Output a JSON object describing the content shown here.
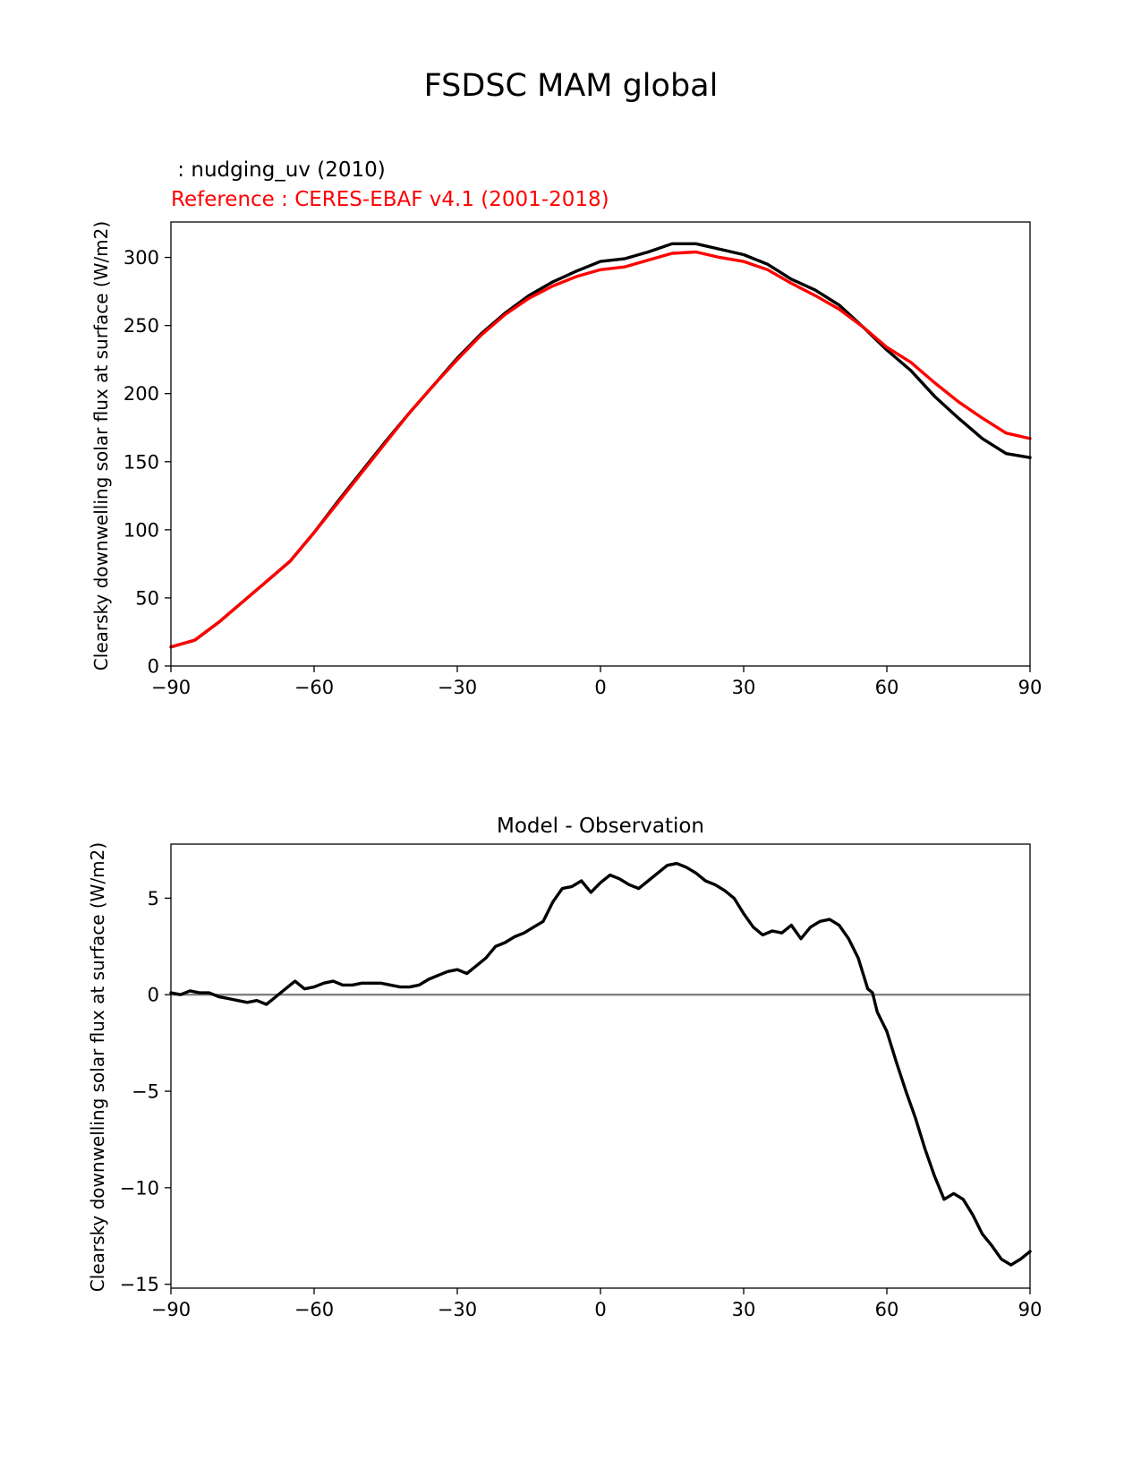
{
  "figure": {
    "title": "FSDSC MAM global"
  },
  "chart_data": [
    {
      "type": "line",
      "legend_labels": {
        "test": " : nudging_uv (2010)",
        "reference": "Reference : CERES-EBAF v4.1 (2001-2018)"
      },
      "xlabel": "",
      "ylabel": "Clearsky downwelling solar flux at surface (W/m2)",
      "xlim": [
        -90,
        90
      ],
      "ylim": [
        0,
        326
      ],
      "xticks": [
        -90,
        -60,
        -30,
        0,
        30,
        60,
        90
      ],
      "xtick_labels": [
        "−90",
        "−60",
        "−30",
        "0",
        "30",
        "60",
        "90"
      ],
      "yticks": [
        0,
        50,
        100,
        150,
        200,
        250,
        300
      ],
      "ytick_labels": [
        "0",
        "50",
        "100",
        "150",
        "200",
        "250",
        "300"
      ],
      "colors": {
        "test": "#000000",
        "reference": "#ff0000"
      },
      "series": [
        {
          "key": "test",
          "x": [
            -90,
            -85,
            -80,
            -75,
            -70,
            -65,
            -60,
            -55,
            -50,
            -45,
            -40,
            -35,
            -30,
            -25,
            -20,
            -15,
            -10,
            -5,
            0,
            5,
            10,
            15,
            20,
            25,
            30,
            35,
            40,
            45,
            50,
            55,
            60,
            65,
            70,
            75,
            80,
            85,
            90
          ],
          "values": [
            14,
            19,
            32,
            47,
            62,
            77,
            98,
            121,
            143,
            165,
            186,
            206,
            226,
            244,
            259,
            272,
            282,
            290,
            297,
            299,
            304,
            310,
            310,
            306,
            302,
            295,
            284,
            276,
            265,
            249,
            232,
            217,
            198,
            182,
            167,
            156,
            153
          ]
        },
        {
          "key": "reference",
          "x": [
            -90,
            -85,
            -80,
            -75,
            -70,
            -65,
            -60,
            -55,
            -50,
            -45,
            -40,
            -35,
            -30,
            -25,
            -20,
            -15,
            -10,
            -5,
            0,
            5,
            10,
            15,
            20,
            25,
            30,
            35,
            40,
            45,
            50,
            55,
            60,
            65,
            70,
            75,
            80,
            85,
            90
          ],
          "values": [
            14,
            19,
            32,
            47,
            62,
            77,
            98,
            120,
            142,
            164,
            186,
            206,
            225,
            243,
            258,
            270,
            279,
            286,
            291,
            293,
            298,
            303,
            304,
            300,
            297,
            291,
            281,
            272,
            262,
            249,
            234,
            223,
            208,
            194,
            182,
            171,
            167
          ]
        }
      ]
    },
    {
      "type": "line",
      "title": "Model - Observation",
      "xlabel": "",
      "ylabel": "Clearsky downwelling solar flux at surface (W/m2)",
      "xlim": [
        -90,
        90
      ],
      "ylim": [
        -15.2,
        7.8
      ],
      "xticks": [
        -90,
        -60,
        -30,
        0,
        30,
        60,
        90
      ],
      "xtick_labels": [
        "−90",
        "−60",
        "−30",
        "0",
        "30",
        "60",
        "90"
      ],
      "yticks": [
        5,
        0,
        -5,
        -10,
        -15
      ],
      "ytick_labels": [
        "5",
        "0",
        "−5",
        "−10",
        "−15"
      ],
      "zero_line": {
        "y": 0,
        "color": "#808080"
      },
      "colors": {
        "diff": "#000000"
      },
      "series": [
        {
          "key": "diff",
          "x": [
            -90,
            -88,
            -86,
            -84,
            -82,
            -80,
            -78,
            -76,
            -74,
            -72,
            -70,
            -68,
            -66,
            -64,
            -62,
            -60,
            -58,
            -56,
            -54,
            -52,
            -50,
            -48,
            -46,
            -44,
            -42,
            -40,
            -38,
            -36,
            -34,
            -32,
            -30,
            -28,
            -26,
            -24,
            -22,
            -20,
            -18,
            -16,
            -14,
            -12,
            -10,
            -8,
            -6,
            -4,
            -2,
            0,
            2,
            4,
            6,
            8,
            10,
            12,
            14,
            16,
            18,
            20,
            22,
            24,
            26,
            28,
            30,
            32,
            34,
            36,
            38,
            40,
            42,
            44,
            46,
            48,
            50,
            52,
            54,
            56,
            57,
            58,
            60,
            62,
            64,
            66,
            68,
            70,
            72,
            74,
            76,
            78,
            80,
            82,
            84,
            86,
            88,
            90
          ],
          "values": [
            0.1,
            0.0,
            0.2,
            0.1,
            0.1,
            -0.1,
            -0.2,
            -0.3,
            -0.4,
            -0.3,
            -0.5,
            -0.1,
            0.3,
            0.7,
            0.3,
            0.4,
            0.6,
            0.7,
            0.5,
            0.5,
            0.6,
            0.6,
            0.6,
            0.5,
            0.4,
            0.4,
            0.5,
            0.8,
            1.0,
            1.2,
            1.3,
            1.1,
            1.5,
            1.9,
            2.5,
            2.7,
            3.0,
            3.2,
            3.5,
            3.8,
            4.8,
            5.5,
            5.6,
            5.9,
            5.3,
            5.8,
            6.2,
            6.0,
            5.7,
            5.5,
            5.9,
            6.3,
            6.7,
            6.8,
            6.6,
            6.3,
            5.9,
            5.7,
            5.4,
            5.0,
            4.2,
            3.5,
            3.1,
            3.3,
            3.2,
            3.6,
            2.9,
            3.5,
            3.8,
            3.9,
            3.6,
            2.9,
            1.9,
            0.3,
            0.1,
            -0.9,
            -1.9,
            -3.5,
            -5.0,
            -6.4,
            -8.0,
            -9.4,
            -10.6,
            -10.3,
            -10.6,
            -11.4,
            -12.4,
            -13.0,
            -13.7,
            -14.0,
            -13.7,
            -13.3
          ]
        }
      ]
    }
  ]
}
